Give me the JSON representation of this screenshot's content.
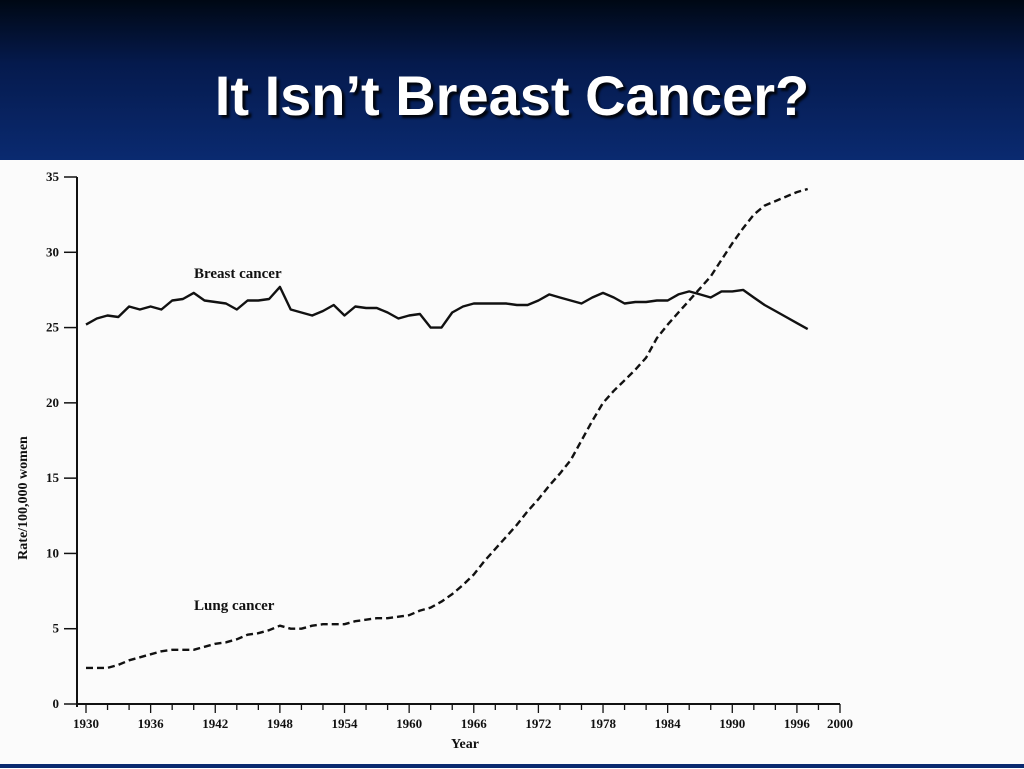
{
  "slide": {
    "title": "It Isn’t Breast Cancer?"
  },
  "colors": {
    "header_dark": "#000814",
    "header_blue": "#0a2a70",
    "title_text": "#ffffff",
    "line": "#111111"
  },
  "chart_data": {
    "type": "line",
    "xlabel": "Year",
    "ylabel": "Rate/100,000 women",
    "xlim": [
      1930,
      2000
    ],
    "ylim": [
      0,
      35
    ],
    "x_ticks": [
      1930,
      1936,
      1942,
      1948,
      1954,
      1960,
      1966,
      1972,
      1978,
      1984,
      1990,
      1996,
      2000
    ],
    "y_ticks": [
      0,
      5,
      10,
      15,
      20,
      25,
      30,
      35
    ],
    "grid": false,
    "legend": "inline labels",
    "series": [
      {
        "name": "Breast cancer",
        "style": "solid",
        "x": [
          1930,
          1931,
          1932,
          1933,
          1934,
          1935,
          1936,
          1937,
          1938,
          1939,
          1940,
          1941,
          1942,
          1943,
          1944,
          1945,
          1946,
          1947,
          1948,
          1949,
          1950,
          1951,
          1952,
          1953,
          1954,
          1955,
          1956,
          1957,
          1958,
          1959,
          1960,
          1961,
          1962,
          1963,
          1964,
          1965,
          1966,
          1967,
          1968,
          1969,
          1970,
          1971,
          1972,
          1973,
          1974,
          1975,
          1976,
          1977,
          1978,
          1979,
          1980,
          1981,
          1982,
          1983,
          1984,
          1985,
          1986,
          1987,
          1988,
          1989,
          1990,
          1991,
          1992,
          1993,
          1994,
          1995,
          1996,
          1997
        ],
        "values": [
          25.2,
          25.6,
          25.8,
          25.7,
          26.4,
          26.2,
          26.4,
          26.2,
          26.8,
          26.9,
          27.3,
          26.8,
          26.7,
          26.6,
          26.2,
          26.8,
          26.8,
          26.9,
          27.7,
          26.2,
          26.0,
          25.8,
          26.1,
          26.5,
          25.8,
          26.4,
          26.3,
          26.3,
          26.0,
          25.6,
          25.8,
          25.9,
          25.0,
          25.0,
          26.0,
          26.4,
          26.6,
          26.6,
          26.6,
          26.6,
          26.5,
          26.5,
          26.8,
          27.2,
          27.0,
          26.8,
          26.6,
          27.0,
          27.3,
          27.0,
          26.6,
          26.7,
          26.7,
          26.8,
          26.8,
          27.2,
          27.4,
          27.2,
          27.0,
          27.4,
          27.4,
          27.5,
          27.0,
          26.5,
          26.1,
          25.7,
          25.3,
          24.9
        ]
      },
      {
        "name": "Lung cancer",
        "style": "dashed",
        "x": [
          1930,
          1931,
          1932,
          1933,
          1934,
          1935,
          1936,
          1937,
          1938,
          1939,
          1940,
          1941,
          1942,
          1943,
          1944,
          1945,
          1946,
          1947,
          1948,
          1949,
          1950,
          1951,
          1952,
          1953,
          1954,
          1955,
          1956,
          1957,
          1958,
          1959,
          1960,
          1961,
          1962,
          1963,
          1964,
          1965,
          1966,
          1967,
          1968,
          1969,
          1970,
          1971,
          1972,
          1973,
          1974,
          1975,
          1976,
          1977,
          1978,
          1979,
          1980,
          1981,
          1982,
          1983,
          1984,
          1985,
          1986,
          1987,
          1988,
          1989,
          1990,
          1991,
          1992,
          1993,
          1994,
          1995,
          1996,
          1997
        ],
        "values": [
          2.4,
          2.4,
          2.4,
          2.6,
          2.9,
          3.1,
          3.3,
          3.5,
          3.6,
          3.6,
          3.6,
          3.8,
          4.0,
          4.1,
          4.3,
          4.6,
          4.7,
          4.9,
          5.2,
          5.0,
          5.0,
          5.2,
          5.3,
          5.3,
          5.3,
          5.5,
          5.6,
          5.7,
          5.7,
          5.8,
          5.9,
          6.2,
          6.4,
          6.8,
          7.3,
          7.9,
          8.6,
          9.5,
          10.3,
          11.1,
          11.9,
          12.8,
          13.6,
          14.5,
          15.3,
          16.2,
          17.5,
          18.8,
          20.0,
          20.8,
          21.5,
          22.2,
          23.0,
          24.3,
          25.2,
          26.0,
          26.8,
          27.6,
          28.4,
          29.5,
          30.6,
          31.6,
          32.5,
          33.1,
          33.4,
          33.7,
          34.0,
          34.2
        ]
      }
    ]
  }
}
